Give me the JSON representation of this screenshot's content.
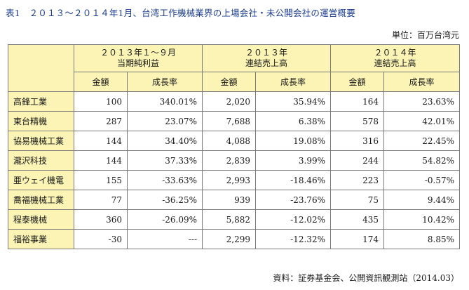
{
  "title": "表1　２０１３〜２０１４年1月、台湾工作機械業界の上場会社・未公開会社の運営概要",
  "unit": "単位：百万台湾元",
  "source": "資料：証券基金会、公開資訊観測站（2014.03）",
  "table": {
    "groups": [
      {
        "line1": "２０１３年１〜９月",
        "line2": "当期純利益"
      },
      {
        "line1": "２０１３年",
        "line2": "連結売上高"
      },
      {
        "line1": "２０１４年",
        "line2": "連結売上高"
      }
    ],
    "subheaders": [
      "金額",
      "成長率",
      "金額",
      "成長率",
      "金額",
      "成長率"
    ],
    "rows": [
      {
        "name": "高鋒工業",
        "cells": [
          "100",
          "340.01%",
          "2,020",
          "35.94%",
          "164",
          "23.63%"
        ]
      },
      {
        "name": "東台精機",
        "cells": [
          "287",
          "23.07%",
          "7,688",
          "6.38%",
          "578",
          "42.01%"
        ]
      },
      {
        "name": "協易機械工業",
        "cells": [
          "144",
          "34.40%",
          "4,088",
          "19.08%",
          "316",
          "22.45%"
        ]
      },
      {
        "name": "瀧沢科技",
        "cells": [
          "144",
          "37.33%",
          "2,839",
          "3.99%",
          "244",
          "54.82%"
        ]
      },
      {
        "name": "亜ウェイ機電",
        "cells": [
          "155",
          "-33.63%",
          "2,993",
          "-18.46%",
          "223",
          "-0.57%"
        ]
      },
      {
        "name": "喬福機械工業",
        "cells": [
          "77",
          "-36.25%",
          "939",
          "-23.76%",
          "75",
          "9.44%"
        ]
      },
      {
        "name": "程泰機械",
        "cells": [
          "360",
          "-26.09%",
          "5,882",
          "-12.02%",
          "435",
          "10.42%"
        ]
      },
      {
        "name": "福裕事業",
        "cells": [
          "-30",
          "---",
          "2,299",
          "-12.32%",
          "174",
          "8.85%"
        ]
      }
    ]
  },
  "colors": {
    "header_bg": "#fbf4b5",
    "title": "#1a3d8f",
    "border": "#7a7a7a"
  }
}
